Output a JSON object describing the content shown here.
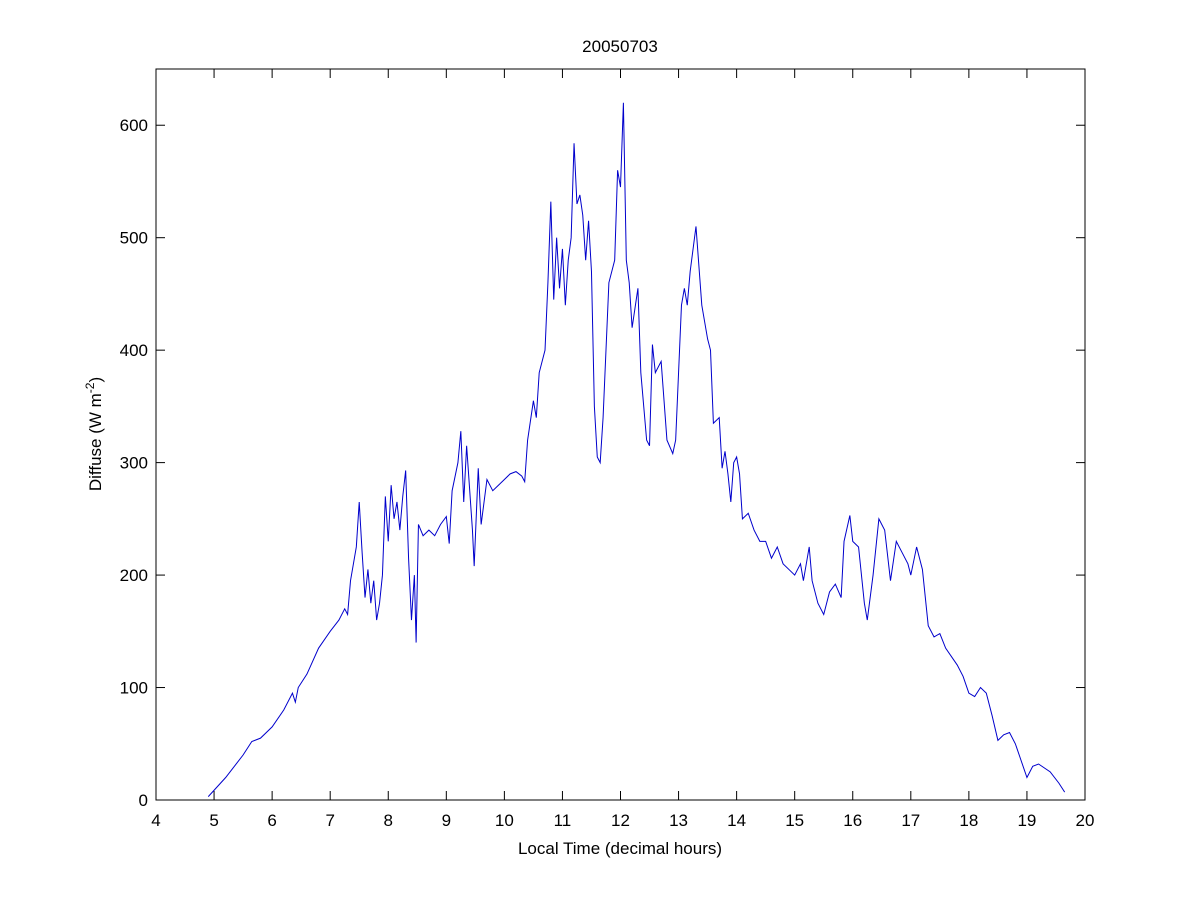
{
  "chart_data": {
    "type": "line",
    "title": "20050703",
    "xlabel": "Local Time (decimal hours)",
    "ylabel": {
      "text": "Diffuse (W m",
      "sup": "-2",
      "end": ")"
    },
    "xlim": [
      4,
      20
    ],
    "xticks": [
      4,
      5,
      6,
      7,
      8,
      9,
      10,
      11,
      12,
      13,
      14,
      15,
      16,
      17,
      18,
      19,
      20
    ],
    "ylim": [
      0,
      650
    ],
    "yticks": [
      0,
      100,
      200,
      300,
      400,
      500,
      600
    ],
    "grid": false,
    "series": [
      {
        "color": "#0000cc",
        "x": [
          4.9,
          5.2,
          5.5,
          5.65,
          5.8,
          6.0,
          6.2,
          6.35,
          6.4,
          6.45,
          6.6,
          6.8,
          7.0,
          7.15,
          7.25,
          7.3,
          7.35,
          7.45,
          7.5,
          7.55,
          7.6,
          7.65,
          7.7,
          7.75,
          7.8,
          7.85,
          7.9,
          7.95,
          8.0,
          8.05,
          8.1,
          8.15,
          8.2,
          8.25,
          8.3,
          8.35,
          8.4,
          8.45,
          8.48,
          8.52,
          8.6,
          8.7,
          8.8,
          8.9,
          9.0,
          9.05,
          9.1,
          9.2,
          9.25,
          9.3,
          9.35,
          9.45,
          9.48,
          9.55,
          9.6,
          9.7,
          9.8,
          9.9,
          10.0,
          10.1,
          10.2,
          10.3,
          10.35,
          10.4,
          10.5,
          10.55,
          10.6,
          10.7,
          10.75,
          10.8,
          10.85,
          10.9,
          10.95,
          11.0,
          11.05,
          11.1,
          11.15,
          11.2,
          11.25,
          11.3,
          11.35,
          11.4,
          11.45,
          11.5,
          11.55,
          11.6,
          11.65,
          11.7,
          11.8,
          11.9,
          11.95,
          12.0,
          12.05,
          12.1,
          12.15,
          12.2,
          12.3,
          12.35,
          12.45,
          12.5,
          12.55,
          12.6,
          12.7,
          12.8,
          12.9,
          12.95,
          13.05,
          13.1,
          13.15,
          13.2,
          13.3,
          13.4,
          13.5,
          13.55,
          13.6,
          13.7,
          13.75,
          13.8,
          13.85,
          13.9,
          13.95,
          14.0,
          14.05,
          14.1,
          14.2,
          14.3,
          14.4,
          14.5,
          14.6,
          14.7,
          14.8,
          14.9,
          15.0,
          15.1,
          15.15,
          15.25,
          15.3,
          15.4,
          15.5,
          15.6,
          15.7,
          15.8,
          15.85,
          15.95,
          16.0,
          16.1,
          16.2,
          16.25,
          16.35,
          16.45,
          16.55,
          16.65,
          16.75,
          16.85,
          16.95,
          17.0,
          17.1,
          17.2,
          17.3,
          17.4,
          17.5,
          17.6,
          17.8,
          17.9,
          18.0,
          18.1,
          18.2,
          18.3,
          18.4,
          18.5,
          18.6,
          18.7,
          18.8,
          18.9,
          19.0,
          19.1,
          19.2,
          19.4,
          19.55,
          19.65
        ],
        "values": [
          3,
          20,
          40,
          52,
          55,
          65,
          80,
          95,
          87,
          100,
          112,
          135,
          150,
          160,
          170,
          165,
          195,
          225,
          265,
          220,
          180,
          205,
          175,
          195,
          160,
          175,
          200,
          270,
          230,
          280,
          250,
          265,
          240,
          270,
          293,
          215,
          160,
          200,
          140,
          245,
          235,
          240,
          235,
          245,
          252,
          228,
          275,
          300,
          328,
          265,
          315,
          240,
          208,
          295,
          245,
          285,
          275,
          280,
          285,
          290,
          292,
          288,
          283,
          320,
          355,
          340,
          380,
          400,
          460,
          532,
          445,
          500,
          455,
          490,
          440,
          480,
          500,
          584,
          530,
          538,
          520,
          480,
          515,
          470,
          350,
          305,
          300,
          340,
          460,
          480,
          560,
          545,
          620,
          480,
          460,
          420,
          455,
          380,
          320,
          315,
          405,
          380,
          390,
          320,
          308,
          320,
          440,
          455,
          440,
          470,
          510,
          440,
          410,
          400,
          335,
          340,
          295,
          310,
          290,
          265,
          300,
          305,
          290,
          250,
          255,
          240,
          230,
          230,
          215,
          225,
          210,
          205,
          200,
          210,
          195,
          225,
          195,
          175,
          165,
          185,
          192,
          180,
          230,
          253,
          230,
          225,
          175,
          160,
          200,
          250,
          240,
          195,
          230,
          220,
          210,
          200,
          225,
          205,
          155,
          145,
          148,
          135,
          120,
          110,
          95,
          92,
          100,
          95,
          75,
          53,
          58,
          60,
          50,
          35,
          20,
          30,
          32,
          25,
          15,
          7
        ]
      }
    ]
  }
}
